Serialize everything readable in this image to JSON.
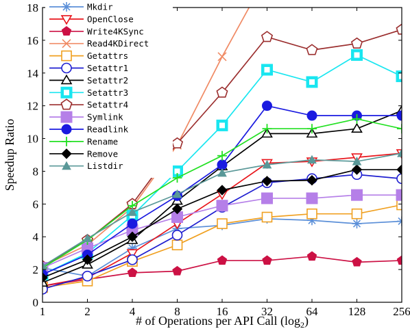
{
  "chart_data": {
    "type": "line",
    "title": "",
    "xlabel": "# of Operations per API Call (log",
    "xlabel_sub": "2",
    "xlabel_tail": ")",
    "ylabel": "Speedup Ratio",
    "x_scale": "log2",
    "x": [
      1,
      2,
      4,
      8,
      16,
      32,
      64,
      128,
      256
    ],
    "x_tick_labels": [
      "1",
      "2",
      "4",
      "8",
      "16",
      "32",
      "64",
      "128",
      "256"
    ],
    "ylim": [
      0,
      18
    ],
    "y_ticks": [
      0,
      2,
      4,
      6,
      8,
      10,
      12,
      14,
      16,
      18
    ],
    "grid": false,
    "legend_position": "top-left",
    "series": [
      {
        "name": "Mkdir",
        "color": "#5b8fd8",
        "marker": "asterisk",
        "values": [
          2.1,
          1.6,
          3.3,
          4.5,
          4.7,
          5.1,
          5.0,
          4.8,
          4.95
        ]
      },
      {
        "name": "OpenClose",
        "color": "#e8151b",
        "marker": "triangle-down",
        "values": [
          1.0,
          1.5,
          3.0,
          4.8,
          6.6,
          8.5,
          8.6,
          8.85,
          9.1
        ]
      },
      {
        "name": "Write4KSync",
        "color": "#cc1144",
        "marker": "pentagon",
        "values": [
          1.0,
          1.4,
          1.8,
          1.9,
          2.55,
          2.55,
          2.8,
          2.45,
          2.55
        ]
      },
      {
        "name": "Read4KDirect",
        "color": "#f08a64",
        "marker": "x",
        "values": [
          2.2,
          3.5,
          5.8,
          9.6,
          15.0,
          20.0,
          null,
          null,
          null
        ]
      },
      {
        "name": "Getattrs",
        "color": "#f0a020",
        "marker": "square-open",
        "values": [
          0.9,
          1.3,
          2.5,
          3.5,
          4.8,
          5.2,
          5.4,
          5.4,
          5.95
        ]
      },
      {
        "name": "Setattr1",
        "color": "#1e1ed0",
        "marker": "circle-open",
        "values": [
          0.8,
          1.6,
          2.6,
          4.1,
          5.8,
          7.3,
          7.55,
          7.8,
          7.55
        ]
      },
      {
        "name": "Setattr2",
        "color": "#000000",
        "marker": "triangle-open",
        "values": [
          1.2,
          2.3,
          3.8,
          6.2,
          8.3,
          10.3,
          10.3,
          10.6,
          11.7
        ]
      },
      {
        "name": "Setattr3",
        "color": "#19e6f0",
        "marker": "square-filled",
        "values": [
          1.7,
          3.0,
          5.3,
          8.0,
          10.8,
          14.2,
          13.45,
          15.1,
          13.8
        ]
      },
      {
        "name": "Setattr4",
        "color": "#9b2e2e",
        "marker": "pentagon-open",
        "values": [
          2.2,
          3.8,
          6.0,
          9.7,
          12.8,
          16.2,
          15.4,
          15.8,
          16.65
        ]
      },
      {
        "name": "Symlink",
        "color": "#b57fe8",
        "marker": "square-filled",
        "values": [
          2.1,
          3.3,
          4.4,
          5.2,
          5.9,
          6.35,
          6.35,
          6.55,
          6.55
        ]
      },
      {
        "name": "Readlink",
        "color": "#1a1ae0",
        "marker": "circle-filled",
        "values": [
          1.7,
          2.9,
          4.8,
          6.5,
          8.4,
          12.0,
          11.4,
          11.4,
          11.4
        ]
      },
      {
        "name": "Rename",
        "color": "#22e022",
        "marker": "plus",
        "values": [
          2.1,
          3.8,
          5.9,
          7.6,
          8.95,
          10.6,
          10.6,
          11.2,
          10.6
        ]
      },
      {
        "name": "Remove",
        "color": "#000000",
        "marker": "diamond-filled",
        "values": [
          1.5,
          2.6,
          4.0,
          5.7,
          6.85,
          7.4,
          7.45,
          8.1,
          8.1
        ]
      },
      {
        "name": "Listdir",
        "color": "#5a9898",
        "marker": "triangle-filled",
        "values": [
          2.2,
          3.9,
          5.5,
          6.6,
          7.9,
          8.4,
          8.7,
          8.6,
          9.1
        ]
      }
    ]
  }
}
